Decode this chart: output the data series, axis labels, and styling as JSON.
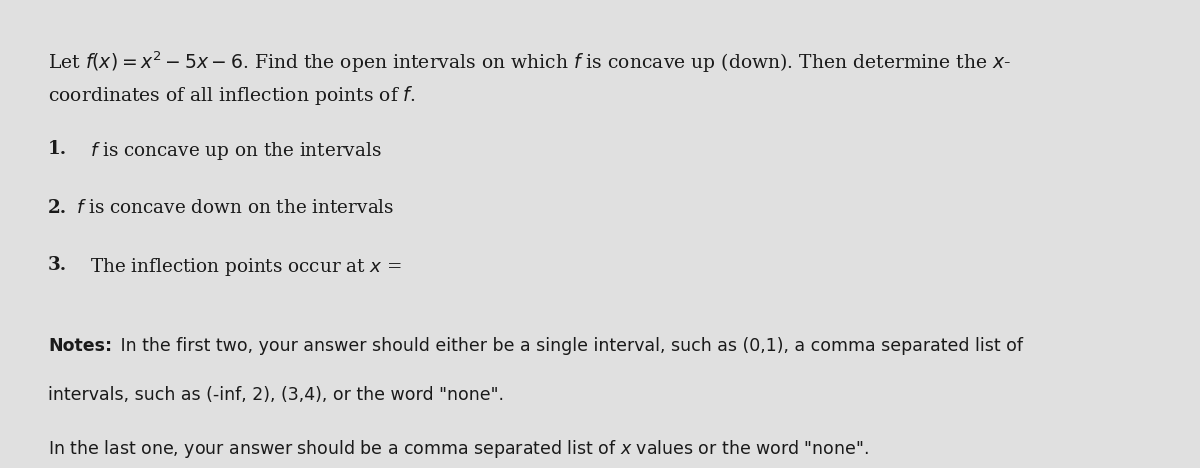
{
  "background_color": "#e0e0e0",
  "card_color": "#f0f0f0",
  "text_color": "#1a1a1a",
  "title_line1": "Let $f(x) = x^2 - 5x - 6$. Find the open intervals on which $f$ is concave up (down). Then determine the $x$-",
  "title_line2": "coordinates of all inflection points of $f$.",
  "item1_label": "1.",
  "item1_text": "$f$ is concave up on the intervals",
  "item2_label": "2.",
  "item2_text": "$f$ is concave down on the intervals",
  "item3_label": "3.",
  "item3_text": "The inflection points occur at $x$ =",
  "notes_bold": "Notes:",
  "notes_line1": " In the first two, your answer should either be a single interval, such as (0,1), a comma separated list of",
  "notes_line2": "intervals, such as (-inf, 2), (3,4), or the word \"none\".",
  "notes_line3": "In the last one, your answer should be a comma separated list of $x$ values or the word \"none\".",
  "figwidth": 12.0,
  "figheight": 4.68,
  "dpi": 100
}
